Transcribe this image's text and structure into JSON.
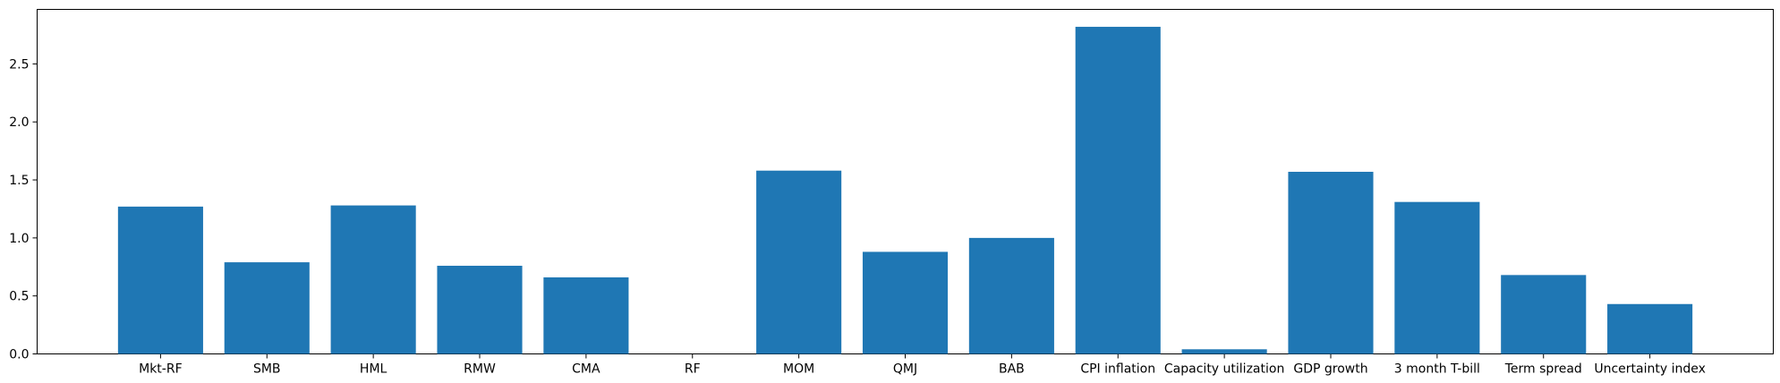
{
  "chart_data": {
    "type": "bar",
    "title": "",
    "xlabel": "",
    "ylabel": "",
    "categories": [
      "Mkt-RF",
      "SMB",
      "HML",
      "RMW",
      "CMA",
      "RF",
      "MOM",
      "QMJ",
      "BAB",
      "CPI inflation",
      "Capacity utilization",
      "GDP growth",
      "3 month T-bill",
      "Term spread",
      "Uncertainty index"
    ],
    "values": [
      1.27,
      0.79,
      1.28,
      0.76,
      0.66,
      0.0,
      1.58,
      0.88,
      1.0,
      2.82,
      0.04,
      1.57,
      1.31,
      0.68,
      0.43
    ],
    "ylim": [
      0,
      2.97
    ],
    "yticks": [
      0.0,
      0.5,
      1.0,
      1.5,
      2.0,
      2.5
    ],
    "ytick_labels": [
      "0.0",
      "0.5",
      "1.0",
      "1.5",
      "2.0",
      "2.5"
    ],
    "grid": false,
    "bar_color": "#1f77b4"
  }
}
